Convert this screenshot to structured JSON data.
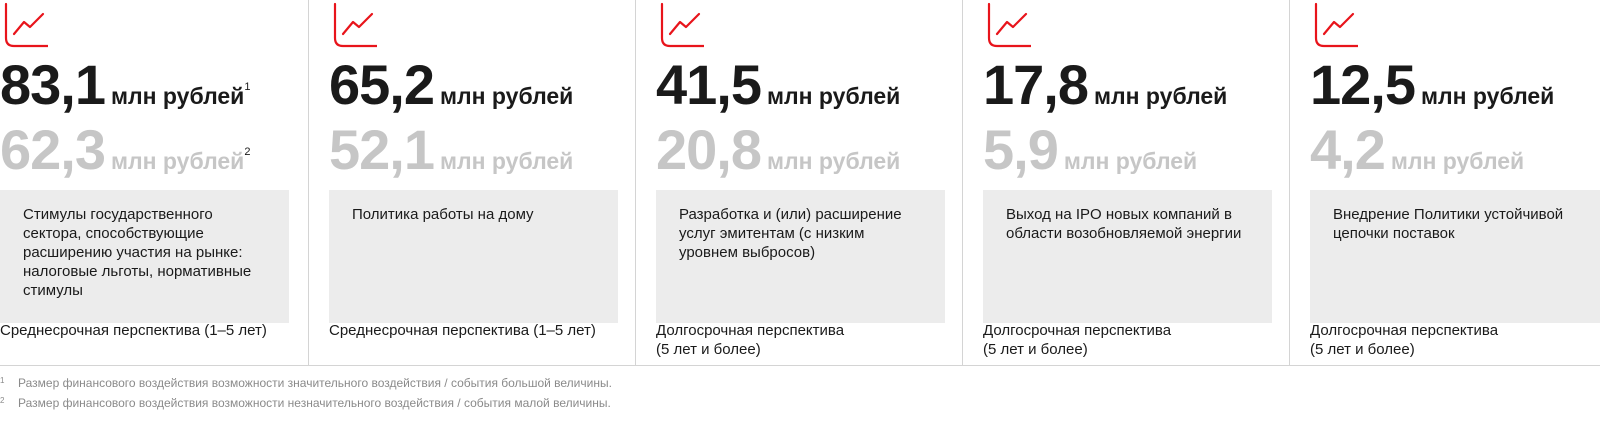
{
  "accent_color": "#e8141b",
  "unit": "млн рублей",
  "cards": [
    {
      "value_large": "83,1",
      "value_large_note": "1",
      "value_small": "62,3",
      "value_small_note": "2",
      "description": "Стимулы государственного сектора, способствующие расширению участия на рынке: налоговые льготы, нормативные стимулы",
      "horizon": "Среднесрочная перспектива (1–5 лет)"
    },
    {
      "value_large": "65,2",
      "value_small": "52,1",
      "description": "Политика работы на дому",
      "horizon": "Среднесрочная перспектива (1–5 лет)"
    },
    {
      "value_large": "41,5",
      "value_small": "20,8",
      "description": "Разработка и (или) расширение услуг эмитентам (с низким уровнем выбросов)",
      "horizon": "Долгосрочная перспектива\n(5 лет и более)"
    },
    {
      "value_large": "17,8",
      "value_small": "5,9",
      "description": "Выход на IPO новых компаний в области возобновляемой энергии",
      "horizon": "Долгосрочная перспектива\n(5 лет и более)"
    },
    {
      "value_large": "12,5",
      "value_small": "4,2",
      "description": "Внедрение Политики устойчивой цепочки поставок",
      "horizon": "Долгосрочная перспектива\n(5 лет и более)"
    }
  ],
  "icon": "line-chart-growth-icon",
  "footnotes": [
    {
      "mark": "1",
      "text": "Размер финансового воздействия возможности значительного воздействия / события большой величины."
    },
    {
      "mark": "2",
      "text": "Размер финансового воздействия возможности незначительного воздействия / события малой величины."
    }
  ]
}
